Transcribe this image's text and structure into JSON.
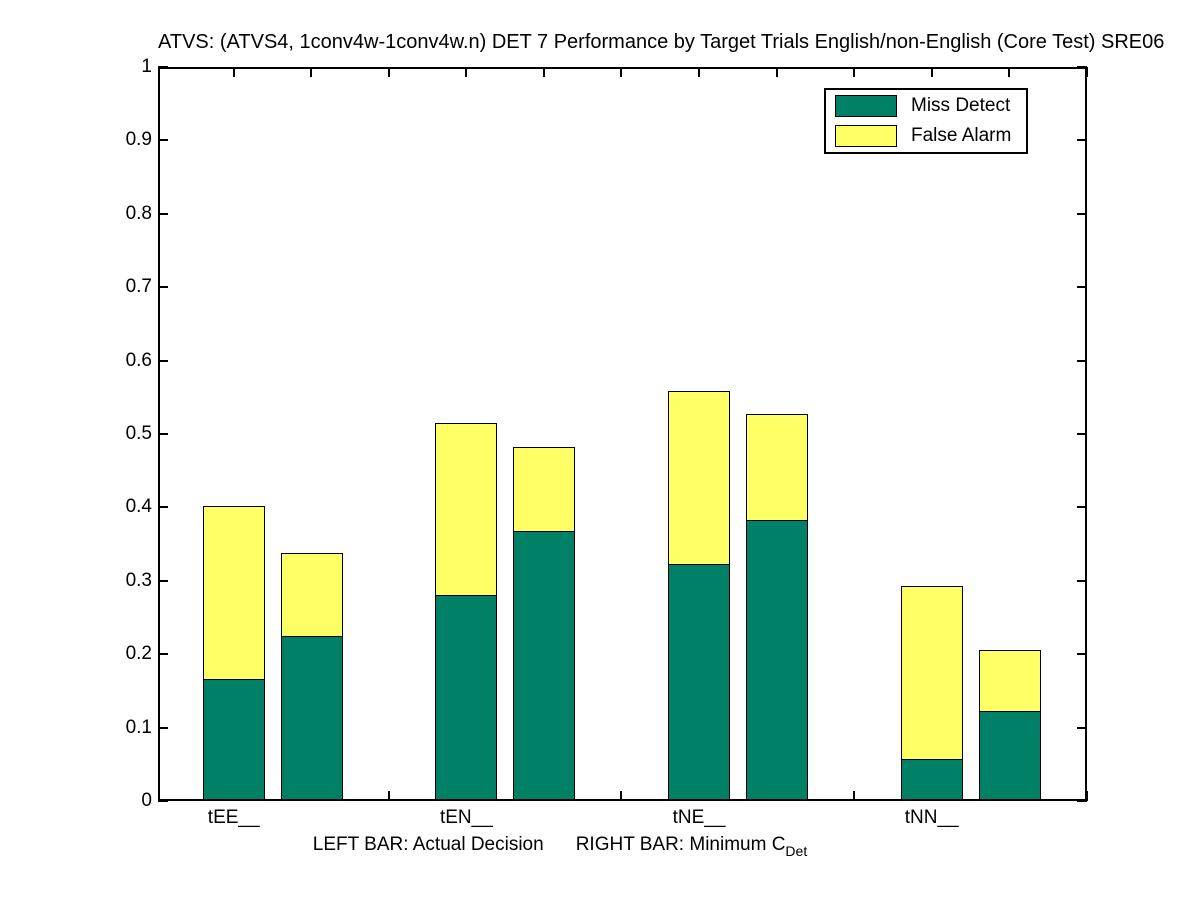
{
  "title": "ATVS: (ATVS4, 1conv4w-1conv4w.n) DET 7 Performance by Target Trials English/non-English (Core Test) SRE06",
  "colors": {
    "miss_detect": "#008066",
    "false_alarm": "#FFFF66",
    "axis": "#000000",
    "background": "#FFFFFF"
  },
  "legend": {
    "position": "top-right",
    "items": [
      {
        "label": "Miss Detect",
        "color": "#008066"
      },
      {
        "label": "False Alarm",
        "color": "#FFFF66"
      }
    ]
  },
  "axes": {
    "y_tick_labels": [
      "0",
      "0.1",
      "0.2",
      "0.3",
      "0.4",
      "0.5",
      "0.6",
      "0.7",
      "0.8",
      "0.9",
      "1"
    ],
    "x_category_labels": [
      "tEE__",
      "tEN__",
      "tNE__",
      "tNN__"
    ],
    "xlabel_left": "LEFT BAR: Actual Decision",
    "xlabel_right": "RIGHT BAR: Minimum C",
    "xlabel_subscript": "Det"
  },
  "chart_data": {
    "type": "bar",
    "stacked": true,
    "grid": false,
    "legend_position": "top-right",
    "title": "ATVS: (ATVS4, 1conv4w-1conv4w.n) DET 7 Performance by Target Trials English/non-English (Core Test) SRE06",
    "xlabel": "LEFT BAR: Actual Decision    RIGHT BAR: Minimum C_Det",
    "ylabel": "",
    "ylim": [
      0,
      1
    ],
    "y_tick_step": 0.1,
    "categories": [
      "tEE__",
      "tEN__",
      "tNE__",
      "tNN__"
    ],
    "bar_pair": [
      "Actual Decision (left bar)",
      "Minimum C_Det (right bar)"
    ],
    "series": [
      {
        "name": "Miss Detect",
        "color": "#008066",
        "values": {
          "actual_decision": [
            0.166,
            0.281,
            0.323,
            0.057
          ],
          "minimum_cdet": [
            0.225,
            0.368,
            0.383,
            0.123
          ]
        }
      },
      {
        "name": "False Alarm",
        "color": "#FFFF66",
        "values": {
          "actual_decision": [
            0.236,
            0.235,
            0.236,
            0.236
          ],
          "minimum_cdet": [
            0.113,
            0.114,
            0.145,
            0.083
          ]
        }
      }
    ],
    "stacked_totals": {
      "actual_decision": [
        0.402,
        0.516,
        0.559,
        0.293
      ],
      "minimum_cdet": [
        0.338,
        0.482,
        0.528,
        0.206
      ]
    }
  }
}
